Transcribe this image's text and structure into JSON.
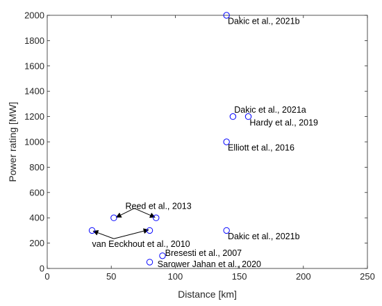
{
  "chart_data": {
    "type": "scatter",
    "xlabel": "Distance [km]",
    "ylabel": "Power rating [MW]",
    "xlim": [
      0,
      250
    ],
    "ylim": [
      0,
      2000
    ],
    "xticks": [
      "0",
      "50",
      "100",
      "150",
      "200",
      "250"
    ],
    "yticks": [
      "0",
      "200",
      "400",
      "600",
      "800",
      "1000",
      "1200",
      "1400",
      "1600",
      "1800",
      "2000"
    ],
    "grid": false,
    "marker": "open-circle",
    "marker_color": "#0000ff",
    "series": [
      {
        "points": [
          {
            "x": 140,
            "y": 2000
          },
          {
            "x": 145,
            "y": 1200
          },
          {
            "x": 157,
            "y": 1200
          },
          {
            "x": 140,
            "y": 1000
          },
          {
            "x": 52,
            "y": 400
          },
          {
            "x": 85,
            "y": 400
          },
          {
            "x": 35,
            "y": 300
          },
          {
            "x": 80,
            "y": 300
          },
          {
            "x": 140,
            "y": 300
          },
          {
            "x": 90,
            "y": 100
          },
          {
            "x": 80,
            "y": 50
          }
        ]
      }
    ],
    "annotations": [
      {
        "text": "Dakic et al., 2021b",
        "x": 141,
        "y": 1955
      },
      {
        "text": "Dakic et al., 2021a",
        "x": 146,
        "y": 1255
      },
      {
        "text": "Hardy et al., 2019",
        "x": 158,
        "y": 1155
      },
      {
        "text": "Elliott et al., 2016",
        "x": 141,
        "y": 955
      },
      {
        "text": "Reed et al., 2013",
        "x": 61,
        "y": 495
      },
      {
        "text": "van Eeckhout et al., 2010",
        "x": 35,
        "y": 195
      },
      {
        "text": "Dakic et al., 2021b",
        "x": 141,
        "y": 255
      },
      {
        "text": "Bresesti et al., 2007",
        "x": 92,
        "y": 125
      },
      {
        "text": "Sarower Jahan et al., 2020",
        "x": 86,
        "y": 35
      }
    ],
    "arrows": [
      {
        "from": [
          68,
          475
        ],
        "to": [
          54,
          405
        ]
      },
      {
        "from": [
          68,
          475
        ],
        "to": [
          84,
          405
        ]
      },
      {
        "from": [
          52,
          235
        ],
        "to": [
          36,
          295
        ]
      },
      {
        "from": [
          52,
          235
        ],
        "to": [
          79,
          305
        ]
      }
    ]
  }
}
